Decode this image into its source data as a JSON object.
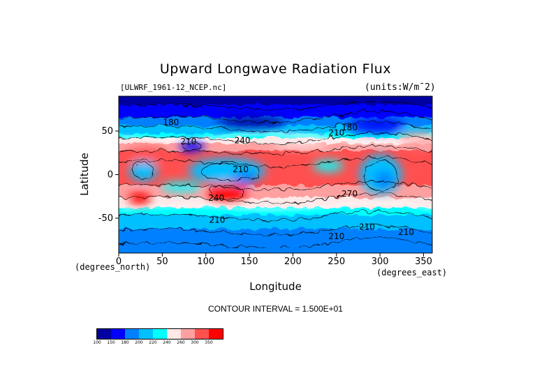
{
  "chart_data": {
    "type": "heatmap",
    "title": "Upward Longwave Radiation Flux",
    "dataset_label": "[ULWRF_1961-12_NCEP.nc]",
    "units_label": "(units:W/m¯2)",
    "xlabel": "Longitude",
    "ylabel": "Latitude",
    "x_unit_label": "(degrees_east)",
    "y_unit_label": "(degrees_north)",
    "xlim": [
      0,
      360
    ],
    "ylim": [
      -90,
      90
    ],
    "x_ticks": [
      0,
      50,
      100,
      150,
      200,
      250,
      300,
      350
    ],
    "y_ticks": [
      50,
      0,
      -50
    ],
    "contour_interval_text": "CONTOUR INTERVAL = 1.500E+01",
    "contour_labels": [
      {
        "text": "180",
        "lon": 60,
        "lat": 57
      },
      {
        "text": "210",
        "lon": 250,
        "lat": 45
      },
      {
        "text": "180",
        "lon": 265,
        "lat": 51
      },
      {
        "text": "240",
        "lon": 142,
        "lat": 36
      },
      {
        "text": "210",
        "lon": 80,
        "lat": 35
      },
      {
        "text": "210",
        "lon": 140,
        "lat": 3
      },
      {
        "text": "240",
        "lon": 112,
        "lat": -30
      },
      {
        "text": "210",
        "lon": 113,
        "lat": -55
      },
      {
        "text": "210",
        "lon": 285,
        "lat": -63
      },
      {
        "text": "210",
        "lon": 330,
        "lat": -69
      },
      {
        "text": "210",
        "lon": 250,
        "lat": -74
      },
      {
        "text": "270",
        "lon": 265,
        "lat": -25
      }
    ],
    "colorbar": {
      "colors": [
        "#0000a0",
        "#0000ff",
        "#0080ff",
        "#00c0ff",
        "#00ffff",
        "#ffe8e8",
        "#ffa0a0",
        "#ff5050",
        "#ff0000"
      ],
      "boundaries": [
        "100",
        "150",
        "180",
        "200",
        "220",
        "240",
        "260",
        "300",
        "350"
      ]
    }
  }
}
